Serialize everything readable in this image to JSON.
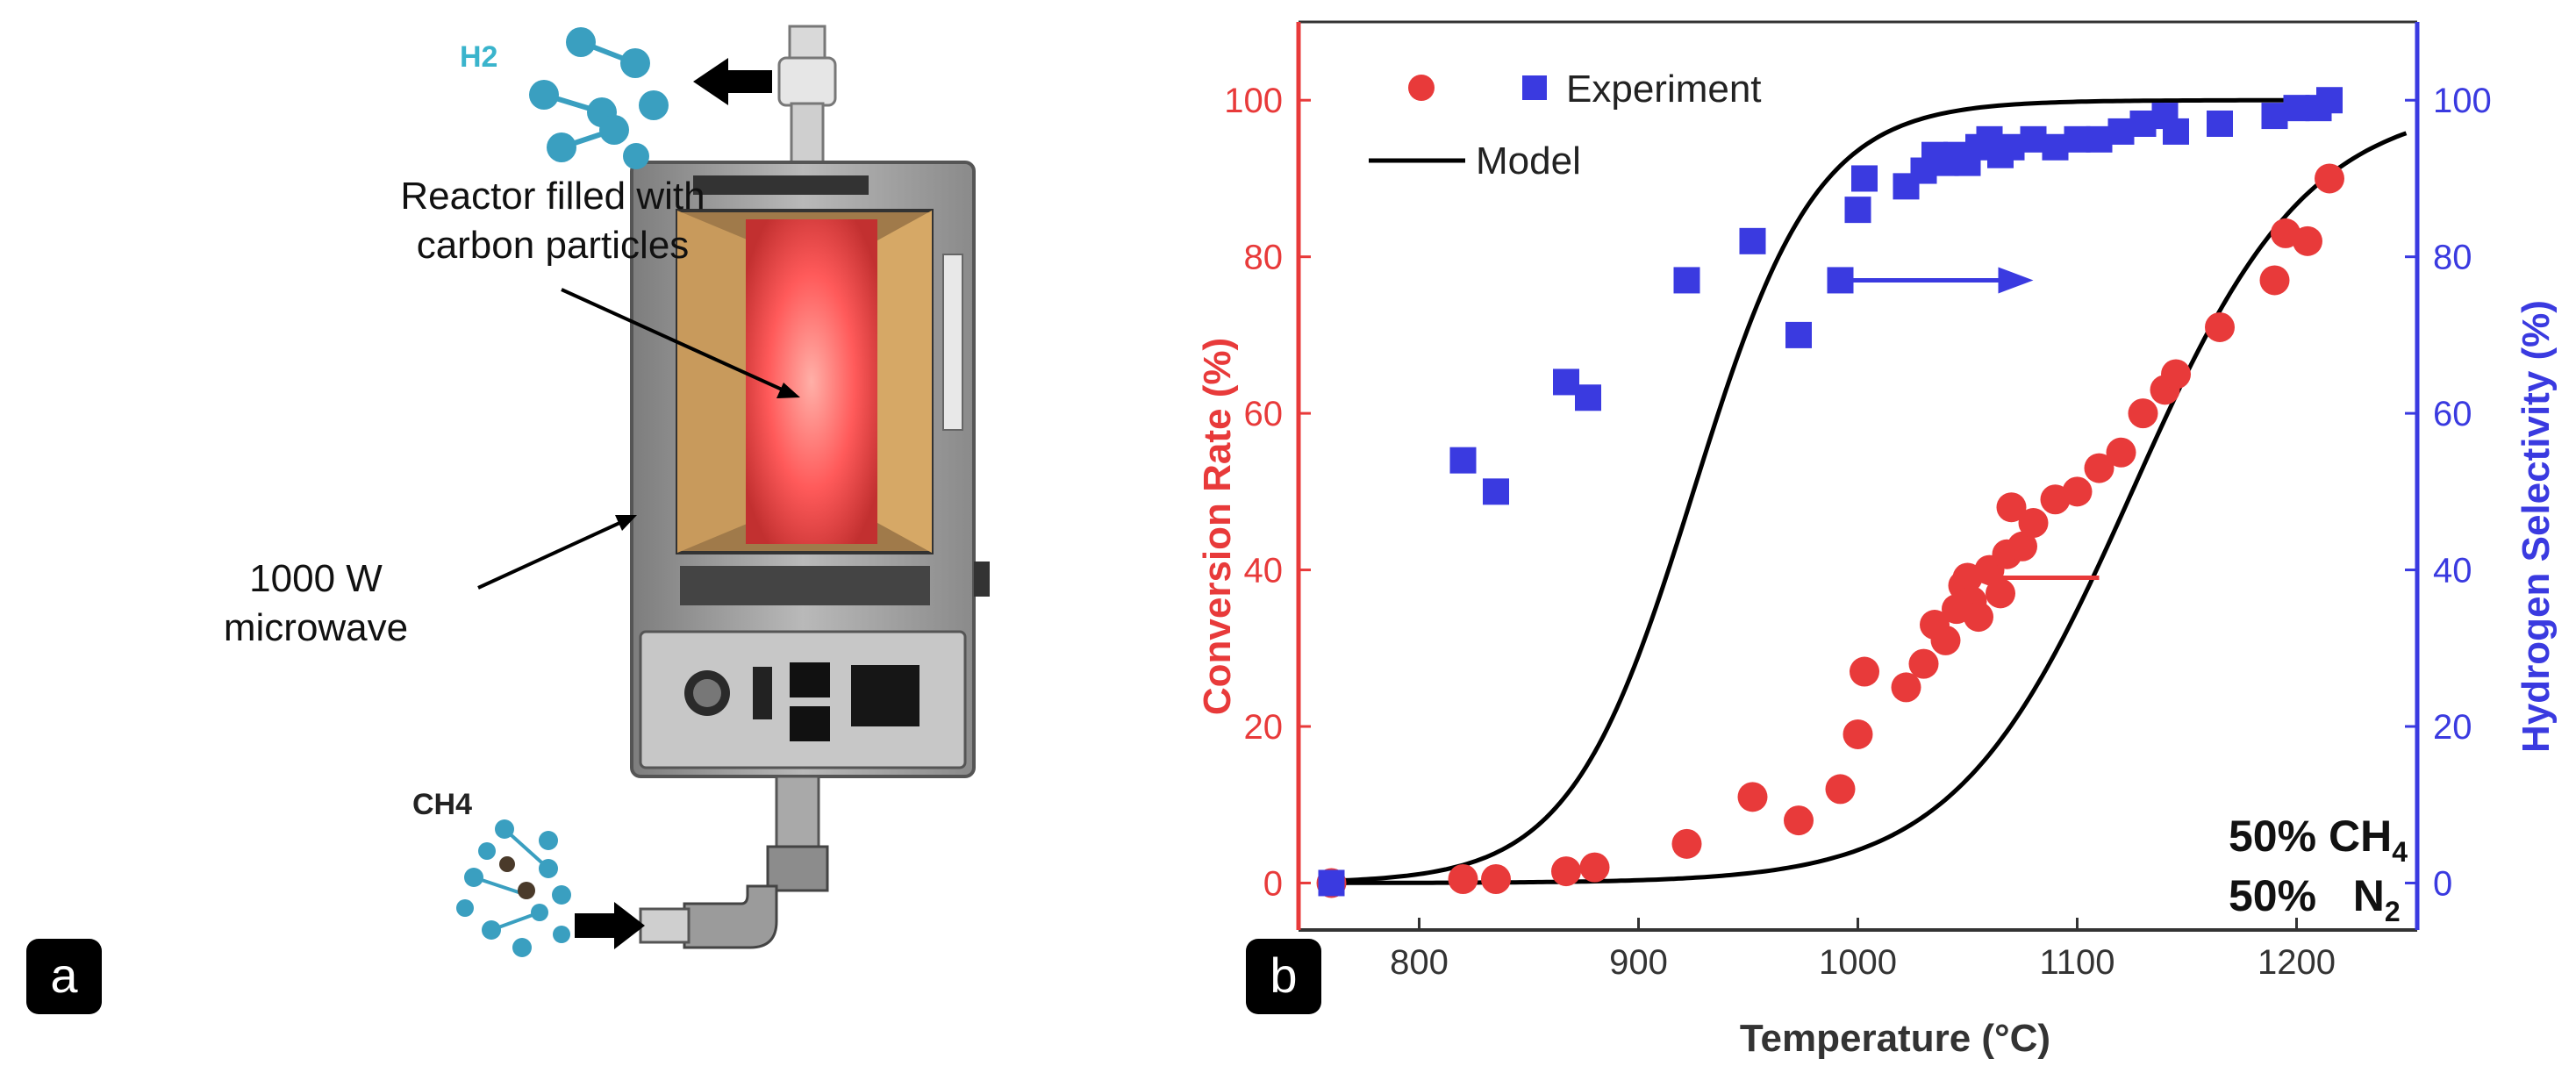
{
  "panel_a": {
    "badge": "a",
    "h2_label": "H2",
    "ch4_label": "CH4",
    "reactor_label_line1": "Reactor filled with",
    "reactor_label_line2": "carbon particles",
    "microwave_label_line1": "1000 W",
    "microwave_label_line2": "microwave",
    "colors": {
      "h2_label": "#3ab4cc",
      "molecule": "#3a9fc0",
      "glow": "#ff5a5a",
      "steel": "#9a9a9a"
    }
  },
  "chart_data": {
    "type": "scatter",
    "badge": "b",
    "xlabel": "Temperature (°C)",
    "ylabel_left": "Conversion Rate (%)",
    "ylabel_right": "Hydrogen Selectivity (%)",
    "xlim": [
      745,
      1255
    ],
    "ylim_left": [
      -6,
      110
    ],
    "ylim_right": [
      -6,
      110
    ],
    "xticks": [
      800,
      900,
      1000,
      1100,
      1200
    ],
    "yticks_left": [
      0,
      20,
      40,
      60,
      80,
      100
    ],
    "yticks_right": [
      0,
      20,
      40,
      60,
      80,
      100
    ],
    "legend": {
      "experiment": "Experiment",
      "model": "Model",
      "placement": "top-left"
    },
    "composition_line1": "50% CH",
    "composition_line1_sub": "4",
    "composition_line2": "50%   N",
    "composition_line2_sub": "2",
    "colors": {
      "conversion": "#e83a3a",
      "selectivity": "#3a3ae0",
      "model": "#000000",
      "left_axis": "#e83a3a",
      "right_axis": "#3a3ae0"
    },
    "series": [
      {
        "axis": "left",
        "marker": "circle",
        "x": [
          760,
          820,
          835,
          867,
          880,
          922,
          952,
          973,
          992,
          1000,
          1003,
          1022,
          1030,
          1035,
          1040,
          1045,
          1048,
          1050,
          1052,
          1055,
          1060,
          1065,
          1068,
          1070,
          1075,
          1080,
          1090,
          1100,
          1110,
          1120,
          1130,
          1140,
          1145,
          1165,
          1190,
          1195,
          1205,
          1215
        ],
        "y": [
          0,
          0.5,
          0.5,
          1.5,
          2,
          5,
          11,
          8,
          12,
          19,
          27,
          25,
          28,
          33,
          31,
          35,
          38,
          39,
          36,
          34,
          40,
          37,
          42,
          48,
          43,
          46,
          49,
          50,
          53,
          55,
          60,
          63,
          65,
          71,
          77,
          83,
          82,
          90
        ]
      },
      {
        "axis": "right",
        "marker": "square",
        "x": [
          760,
          820,
          835,
          867,
          877,
          922,
          952,
          973,
          992,
          1000,
          1003,
          1022,
          1030,
          1035,
          1040,
          1045,
          1050,
          1055,
          1060,
          1065,
          1070,
          1080,
          1090,
          1100,
          1110,
          1120,
          1130,
          1140,
          1145,
          1165,
          1190,
          1200,
          1210,
          1215
        ],
        "y": [
          0,
          54,
          50,
          64,
          62,
          77,
          82,
          70,
          77,
          86,
          90,
          89,
          91,
          93,
          92,
          93,
          92,
          94,
          95,
          93,
          94,
          95,
          94,
          95,
          95,
          96,
          97,
          98,
          96,
          97,
          98,
          99,
          99,
          100
        ]
      }
    ],
    "model_curves": [
      {
        "name": "selectivity_model",
        "midpoint": 925,
        "width": 28,
        "xrange": [
          760,
          1220
        ]
      },
      {
        "name": "conversion_model",
        "midpoint": 1125,
        "width": 40,
        "xrange": [
          760,
          1250
        ]
      }
    ],
    "arrows": [
      {
        "from": [
          995,
          77
        ],
        "to": [
          1080,
          77
        ],
        "axis": "right"
      },
      {
        "from": [
          1110,
          39
        ],
        "to": [
          1050,
          39
        ],
        "axis": "left"
      }
    ]
  }
}
